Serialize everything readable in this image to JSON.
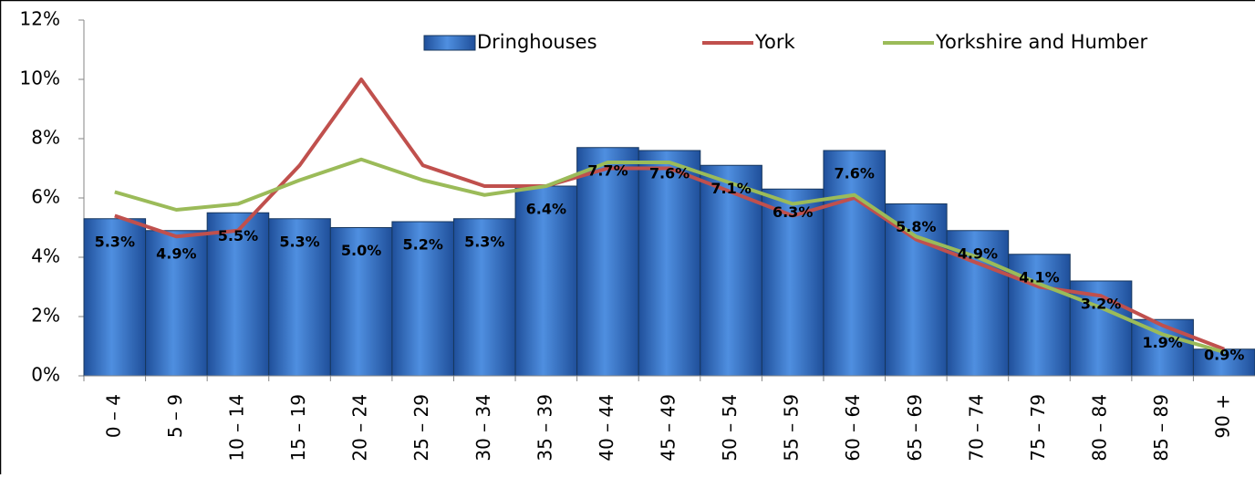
{
  "chart_data": {
    "type": "bar",
    "categories": [
      "0 – 4",
      "5 – 9",
      "10 – 14",
      "15 – 19",
      "20 – 24",
      "25 – 29",
      "30 – 34",
      "35 – 39",
      "40 – 44",
      "45 – 49",
      "50 – 54",
      "55 – 59",
      "60 – 64",
      "65 – 69",
      "70 – 74",
      "75 – 79",
      "80 – 84",
      "85 – 89",
      "90 +"
    ],
    "series": [
      {
        "name": "Dringhouses",
        "type": "bar",
        "color": "#3f7fd4",
        "values": [
          5.3,
          4.9,
          5.5,
          5.3,
          5.0,
          5.2,
          5.3,
          6.4,
          7.7,
          7.6,
          7.1,
          6.3,
          7.6,
          5.8,
          4.9,
          4.1,
          3.2,
          1.9,
          0.9
        ],
        "value_labels": [
          "5.3%",
          "4.9%",
          "5.5%",
          "5.3%",
          "5.0%",
          "5.2%",
          "5.3%",
          "6.4%",
          "7.7%",
          "7.6%",
          "7.1%",
          "6.3%",
          "7.6%",
          "5.8%",
          "4.9%",
          "4.1%",
          "3.2%",
          "1.9%",
          "0.9%"
        ]
      },
      {
        "name": "York",
        "type": "line",
        "color": "#c0504d",
        "values": [
          5.4,
          4.7,
          4.9,
          7.1,
          10.0,
          7.1,
          6.4,
          6.4,
          7.0,
          7.0,
          6.2,
          5.4,
          6.0,
          4.6,
          3.8,
          3.0,
          2.7,
          1.7,
          0.9
        ]
      },
      {
        "name": "Yorkshire and Humber",
        "type": "line",
        "color": "#9bbb59",
        "values": [
          6.2,
          5.6,
          5.8,
          6.6,
          7.3,
          6.6,
          6.1,
          6.4,
          7.2,
          7.2,
          6.5,
          5.8,
          6.1,
          4.7,
          4.0,
          3.1,
          2.3,
          1.4,
          0.8
        ]
      }
    ],
    "ylim": [
      0,
      12
    ],
    "yticks": [
      {
        "value": 0,
        "label": "0%"
      },
      {
        "value": 2,
        "label": "2%"
      },
      {
        "value": 4,
        "label": "4%"
      },
      {
        "value": 6,
        "label": "6%"
      },
      {
        "value": 8,
        "label": "8%"
      },
      {
        "value": 10,
        "label": "10%"
      },
      {
        "value": 12,
        "label": "12%"
      }
    ],
    "legend": "top"
  }
}
